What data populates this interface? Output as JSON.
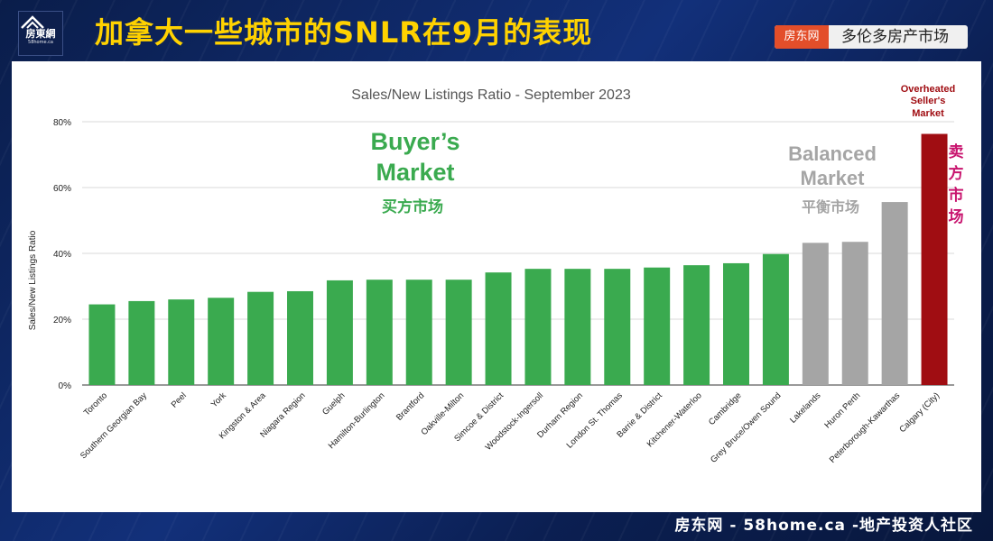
{
  "header": {
    "logo_name": "房東網",
    "logo_url": "58home.ca",
    "headline": "加拿大一些城市的SNLR在9月的表现",
    "tag_label": "房东网",
    "tag_city": "多伦多房产市场"
  },
  "annotations": {
    "buyers_line1": "Buyer’s",
    "buyers_line2": "Market",
    "buyers_cn": "买方市场",
    "balanced_line1": "Balanced",
    "balanced_line2": "Market",
    "balanced_cn": "平衡市场",
    "overheated_line1": "Overheated",
    "overheated_line2": "Seller's",
    "overheated_line3": "Market",
    "sellers_cn": [
      "卖",
      "方",
      "市",
      "场"
    ]
  },
  "colors": {
    "buyers": "#3aaa4f",
    "balanced": "#a5a5a5",
    "sellers": "#a00d12",
    "sellers_cn": "#c8146e",
    "headline": "#ffd200",
    "tag_red": "#e34e2a"
  },
  "chart_data": {
    "type": "bar",
    "title": "Sales/New Listings Ratio - September 2023",
    "xlabel": "",
    "ylabel": "Sales/New Listings Ratio",
    "ylim": [
      0,
      80
    ],
    "yticks": [
      0,
      20,
      40,
      60,
      80
    ],
    "ytick_labels": [
      "0%",
      "20%",
      "40%",
      "60%",
      "80%"
    ],
    "grid": true,
    "categories": [
      "Toronto",
      "Southern Georgian Bay",
      "Peel",
      "York",
      "Kingston & Area",
      "Niagara Region",
      "Guelph",
      "Hamilton-Burlington",
      "Brantford",
      "Oakville-Milton",
      "Simcoe & District",
      "Woodstock-Ingersoll",
      "Durham Region",
      "London St. Thomas",
      "Barrie & District",
      "Kitchener-Waterloo",
      "Cambridge",
      "Grey Bruce/Owen Sound",
      "Lakelands",
      "Huron Perth",
      "Peterborough-Kawarthas",
      "Calgary (City)"
    ],
    "values": [
      24.5,
      25.5,
      26,
      26.5,
      28.3,
      28.5,
      31.8,
      32,
      32,
      32,
      34.2,
      35.3,
      35.3,
      35.3,
      35.7,
      36.4,
      37,
      39.8,
      43.2,
      43.5,
      55.6,
      76.3
    ],
    "groups": [
      "buyers",
      "buyers",
      "buyers",
      "buyers",
      "buyers",
      "buyers",
      "buyers",
      "buyers",
      "buyers",
      "buyers",
      "buyers",
      "buyers",
      "buyers",
      "buyers",
      "buyers",
      "buyers",
      "buyers",
      "buyers",
      "balanced",
      "balanced",
      "balanced",
      "sellers"
    ]
  },
  "footer": {
    "text": "房东网 - 58home.ca -地产投资人社区"
  }
}
